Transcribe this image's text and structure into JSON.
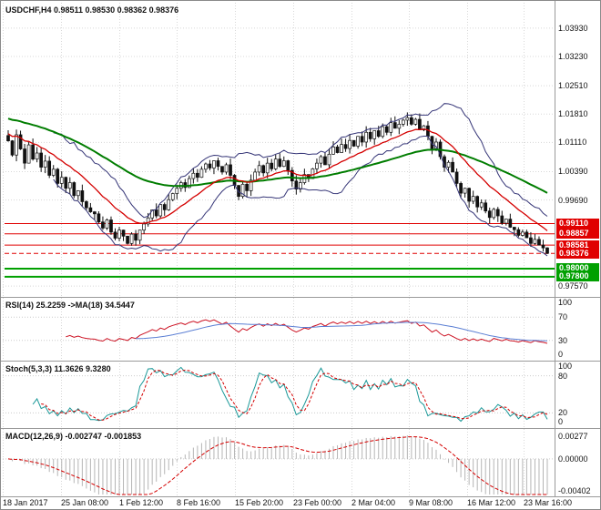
{
  "window": {
    "background": "#ffffff",
    "border_color": "#8a8a8a"
  },
  "panels": {
    "main": {
      "header": "USDCHF,H4 0.98511 0.98530 0.98362 0.98376"
    },
    "rsi": {
      "header": "RSI(14) 25.2259 ->MA(18) 34.5447"
    },
    "stoch": {
      "header": "Stoch(5,3,3) 11.3626 9.3280"
    },
    "macd": {
      "header": "MACD(12,26,9) -0.002747 -0.001853"
    }
  },
  "chart_data": {
    "type": "candlestick",
    "symbol": "USDCHF",
    "timeframe": "H4",
    "grid": true,
    "x_labels": [
      "18 Jan 2017",
      "25 Jan 08:00",
      "1 Feb 12:00",
      "8 Feb 16:00",
      "15 Feb 20:00",
      "23 Feb 00:00",
      "2 Mar 04:00",
      "9 Mar 08:00",
      "16 Mar 12:00",
      "23 Mar 16:00"
    ],
    "main": {
      "ylim": [
        0.9737,
        1.0442
      ],
      "grid_prices": [
        1.0393,
        1.0323,
        1.0251,
        1.0181,
        1.0111,
        1.0039,
        0.9969,
        0.9757
      ],
      "levels": [
        {
          "price": 0.9911,
          "label": "0.99110",
          "color": "#e00000",
          "style": "solid",
          "width": 1
        },
        {
          "price": 0.98857,
          "label": "0.98857",
          "color": "#e00000",
          "style": "solid",
          "width": 1
        },
        {
          "price": 0.98581,
          "label": "0.98581",
          "color": "#e00000",
          "style": "solid",
          "width": 1
        },
        {
          "price": 0.98376,
          "label": "0.98376",
          "color": "#e00000",
          "style": "dashed",
          "width": 1
        },
        {
          "price": 0.98,
          "label": "0.98000",
          "color": "#00a000",
          "style": "solid",
          "width": 2
        },
        {
          "price": 0.978,
          "label": "0.97800",
          "color": "#00a000",
          "style": "solid",
          "width": 2
        }
      ],
      "closes": [
        1.0115,
        1.008,
        1.013,
        1.0095,
        1.006,
        1.0105,
        1.007,
        1.0085,
        1.005,
        1.0065,
        1.003,
        1.0045,
        1.001,
        1.0025,
        0.9998,
        1.0012,
        0.998,
        0.9992,
        0.9965,
        0.995,
        0.994,
        0.9935,
        0.9915,
        0.99,
        0.992,
        0.989,
        0.9875,
        0.9895,
        0.988,
        0.9862,
        0.9885,
        0.987,
        0.9895,
        0.991,
        0.9925,
        0.9945,
        0.993,
        0.9958,
        0.9945,
        0.997,
        0.9985,
        0.9998,
        1.0012,
        1.0,
        1.0022,
        1.0035,
        1.0025,
        1.0045,
        1.0058,
        1.0048,
        1.0066,
        1.0052,
        1.0038,
        1.0056,
        1.003,
        1.0005,
        0.9978,
        1.0008,
        0.9992,
        1.0018,
        1.0038,
        1.0054,
        1.0036,
        1.006,
        1.0046,
        1.007,
        1.0052,
        1.0066,
        1.0042,
        1.0016,
        0.9996,
        1.0012,
        1.0032,
        1.0022,
        1.0046,
        1.006,
        1.0076,
        1.0056,
        1.0082,
        1.01,
        1.0086,
        1.0106,
        1.0096,
        1.0116,
        1.0102,
        1.0126,
        1.0112,
        1.0136,
        1.012,
        1.014,
        1.0126,
        1.015,
        1.0136,
        1.016,
        1.0146,
        1.0156,
        1.0166,
        1.0172,
        1.0156,
        1.0168,
        1.0142,
        1.0152,
        1.0126,
        1.0096,
        1.0112,
        1.0076,
        1.005,
        1.0062,
        1.0038,
        1.001,
        0.9986,
        0.9998,
        0.9966,
        0.9978,
        0.9952,
        0.9962,
        0.9942,
        0.9926,
        0.9946,
        0.993,
        0.9912,
        0.9922,
        0.9902,
        0.9896,
        0.9882,
        0.989,
        0.9876,
        0.9862,
        0.9872,
        0.9858,
        0.98511,
        0.98376
      ],
      "last_ohlc": [
        0.98511,
        0.9853,
        0.98362,
        0.98376
      ],
      "wick_amp": 0.0016,
      "ma_fast": {
        "period": 15,
        "init": 1.0135,
        "color": "#d40000"
      },
      "ma_slow": {
        "period": 55,
        "init": 1.0172,
        "color": "#007d00"
      },
      "bollinger": {
        "period": 12,
        "mult": 2,
        "color": "#353577"
      }
    },
    "rsi": {
      "period": 14,
      "ma_period": 18,
      "value": 25.2259,
      "ma_value": 34.5447,
      "ticks": [
        100,
        70,
        30,
        0
      ],
      "ylim": [
        0,
        100
      ],
      "line_color": "#cc1122",
      "ma_color": "#5b7fd4"
    },
    "stoch": {
      "k": 5,
      "slow": 3,
      "d": 3,
      "value": 11.3626,
      "signal_value": 9.328,
      "ticks": [
        100,
        80,
        20,
        0
      ],
      "ylim": [
        0,
        100
      ],
      "k_color": "#1a9898",
      "d_color": "#d40000"
    },
    "macd": {
      "fast": 12,
      "slow": 26,
      "signal": 9,
      "value": -0.002747,
      "signal_value": -0.001853,
      "ylim": [
        -0.0043,
        0.0034
      ],
      "ticks": [
        0.00277,
        0,
        -0.00402
      ],
      "tick_labels": [
        "0.00277",
        "0.00000",
        "-0.00402"
      ],
      "hist_color": "#b5b5b5",
      "signal_color": "#d40000"
    }
  }
}
